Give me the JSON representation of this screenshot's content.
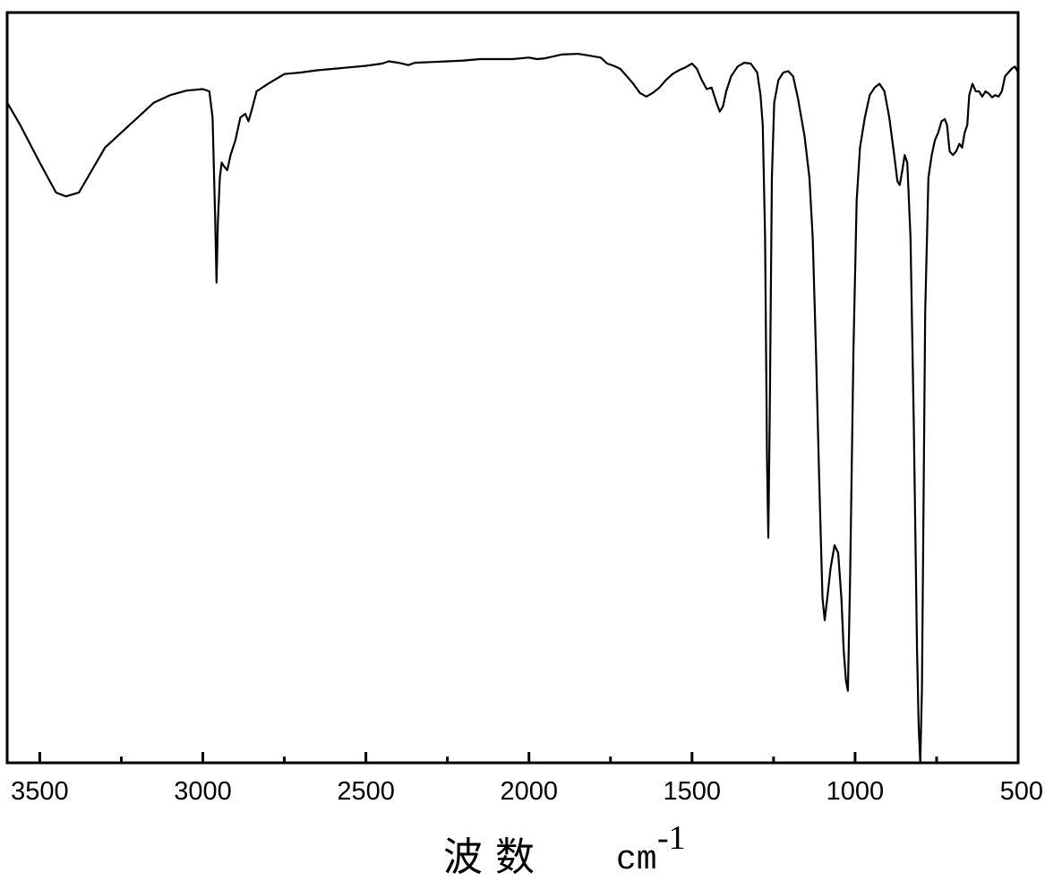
{
  "chart_data": {
    "type": "line",
    "xlabel": {
      "text": "波 数",
      "unit": "cm",
      "unit_exponent": "-1"
    },
    "x_reversed": true,
    "xlim": [
      3600,
      500
    ],
    "ylim": [
      0,
      100
    ],
    "x_ticks": [
      {
        "value": 3500,
        "label": "3500"
      },
      {
        "value": 3000,
        "label": "3000"
      },
      {
        "value": 2500,
        "label": "2500"
      },
      {
        "value": 2000,
        "label": "2000"
      },
      {
        "value": 1500,
        "label": "1500"
      },
      {
        "value": 1000,
        "label": "1000"
      },
      {
        "value": 500,
        "label": "500"
      }
    ],
    "x_minor_ticks": [
      3250,
      2750,
      2250,
      1750,
      1250,
      750
    ],
    "y_ticks_shown": false,
    "grid": false,
    "line_color": "#000000",
    "series": [
      {
        "points": [
          [
            3600,
            88.0
          ],
          [
            3560,
            85.0
          ],
          [
            3500,
            80.0
          ],
          [
            3450,
            76.0
          ],
          [
            3420,
            75.5
          ],
          [
            3380,
            76.0
          ],
          [
            3340,
            79.0
          ],
          [
            3300,
            82.0
          ],
          [
            3250,
            84.0
          ],
          [
            3200,
            86.0
          ],
          [
            3150,
            88.0
          ],
          [
            3100,
            89.0
          ],
          [
            3050,
            89.6
          ],
          [
            3000,
            89.8
          ],
          [
            2980,
            89.5
          ],
          [
            2970,
            86.0
          ],
          [
            2962,
            72.0
          ],
          [
            2958,
            64.0
          ],
          [
            2954,
            72.0
          ],
          [
            2948,
            78.0
          ],
          [
            2942,
            80.0
          ],
          [
            2935,
            79.5
          ],
          [
            2925,
            79.0
          ],
          [
            2915,
            81.0
          ],
          [
            2900,
            83.0
          ],
          [
            2885,
            86.0
          ],
          [
            2870,
            86.5
          ],
          [
            2860,
            85.5
          ],
          [
            2850,
            87.0
          ],
          [
            2835,
            89.5
          ],
          [
            2800,
            90.5
          ],
          [
            2750,
            91.8
          ],
          [
            2700,
            92.0
          ],
          [
            2650,
            92.3
          ],
          [
            2600,
            92.5
          ],
          [
            2550,
            92.7
          ],
          [
            2500,
            92.9
          ],
          [
            2450,
            93.2
          ],
          [
            2430,
            93.5
          ],
          [
            2400,
            93.3
          ],
          [
            2370,
            93.0
          ],
          [
            2350,
            93.3
          ],
          [
            2300,
            93.4
          ],
          [
            2250,
            93.5
          ],
          [
            2200,
            93.6
          ],
          [
            2150,
            93.8
          ],
          [
            2100,
            93.8
          ],
          [
            2050,
            93.8
          ],
          [
            2000,
            94.0
          ],
          [
            1975,
            93.8
          ],
          [
            1950,
            93.9
          ],
          [
            1900,
            94.4
          ],
          [
            1850,
            94.5
          ],
          [
            1820,
            94.3
          ],
          [
            1780,
            94.0
          ],
          [
            1760,
            93.2
          ],
          [
            1740,
            92.9
          ],
          [
            1720,
            92.5
          ],
          [
            1700,
            91.5
          ],
          [
            1680,
            90.5
          ],
          [
            1660,
            89.3
          ],
          [
            1640,
            88.8
          ],
          [
            1620,
            89.3
          ],
          [
            1600,
            90.0
          ],
          [
            1580,
            91.0
          ],
          [
            1560,
            91.8
          ],
          [
            1540,
            92.3
          ],
          [
            1520,
            92.7
          ],
          [
            1500,
            93.2
          ],
          [
            1485,
            92.5
          ],
          [
            1470,
            91.0
          ],
          [
            1455,
            89.8
          ],
          [
            1440,
            90.0
          ],
          [
            1425,
            88.0
          ],
          [
            1415,
            86.8
          ],
          [
            1405,
            87.5
          ],
          [
            1395,
            89.5
          ],
          [
            1380,
            91.5
          ],
          [
            1360,
            92.8
          ],
          [
            1340,
            93.3
          ],
          [
            1320,
            93.2
          ],
          [
            1300,
            92.0
          ],
          [
            1290,
            89.0
          ],
          [
            1283,
            85.0
          ],
          [
            1276,
            70.0
          ],
          [
            1270,
            40.0
          ],
          [
            1266,
            30.0
          ],
          [
            1262,
            45.0
          ],
          [
            1255,
            78.0
          ],
          [
            1248,
            88.0
          ],
          [
            1235,
            91.0
          ],
          [
            1220,
            92.0
          ],
          [
            1205,
            92.2
          ],
          [
            1190,
            91.5
          ],
          [
            1175,
            88.5
          ],
          [
            1155,
            83.5
          ],
          [
            1140,
            78.0
          ],
          [
            1130,
            70.0
          ],
          [
            1120,
            55.0
          ],
          [
            1110,
            38.0
          ],
          [
            1100,
            22.0
          ],
          [
            1093,
            19.0
          ],
          [
            1085,
            22.0
          ],
          [
            1075,
            26.0
          ],
          [
            1063,
            29.0
          ],
          [
            1052,
            28.0
          ],
          [
            1042,
            22.0
          ],
          [
            1035,
            15.0
          ],
          [
            1028,
            11.0
          ],
          [
            1022,
            9.6
          ],
          [
            1015,
            25.0
          ],
          [
            1005,
            55.0
          ],
          [
            995,
            75.0
          ],
          [
            985,
            82.0
          ],
          [
            970,
            86.0
          ],
          [
            955,
            89.0
          ],
          [
            940,
            90.0
          ],
          [
            925,
            90.5
          ],
          [
            910,
            89.5
          ],
          [
            895,
            86.0
          ],
          [
            880,
            81.0
          ],
          [
            870,
            77.5
          ],
          [
            863,
            77.0
          ],
          [
            855,
            79.0
          ],
          [
            848,
            81.0
          ],
          [
            840,
            80.0
          ],
          [
            830,
            70.0
          ],
          [
            820,
            45.0
          ],
          [
            810,
            15.0
          ],
          [
            805,
            5.0
          ],
          [
            800,
            0.0
          ],
          [
            795,
            10.0
          ],
          [
            785,
            60.0
          ],
          [
            775,
            78.0
          ],
          [
            765,
            81.0
          ],
          [
            755,
            83.0
          ],
          [
            745,
            84.0
          ],
          [
            735,
            85.5
          ],
          [
            725,
            85.8
          ],
          [
            718,
            85.0
          ],
          [
            710,
            81.5
          ],
          [
            700,
            81.0
          ],
          [
            690,
            81.5
          ],
          [
            680,
            82.5
          ],
          [
            672,
            82.0
          ],
          [
            664,
            84.0
          ],
          [
            656,
            85.0
          ],
          [
            650,
            89.0
          ],
          [
            640,
            90.5
          ],
          [
            630,
            89.5
          ],
          [
            620,
            89.5
          ],
          [
            610,
            88.8
          ],
          [
            600,
            89.5
          ],
          [
            590,
            89.2
          ],
          [
            580,
            88.7
          ],
          [
            570,
            89.0
          ],
          [
            560,
            88.8
          ],
          [
            550,
            89.5
          ],
          [
            540,
            91.5
          ],
          [
            530,
            92.0
          ],
          [
            520,
            92.5
          ],
          [
            510,
            92.8
          ],
          [
            500,
            92.0
          ]
        ]
      }
    ]
  }
}
